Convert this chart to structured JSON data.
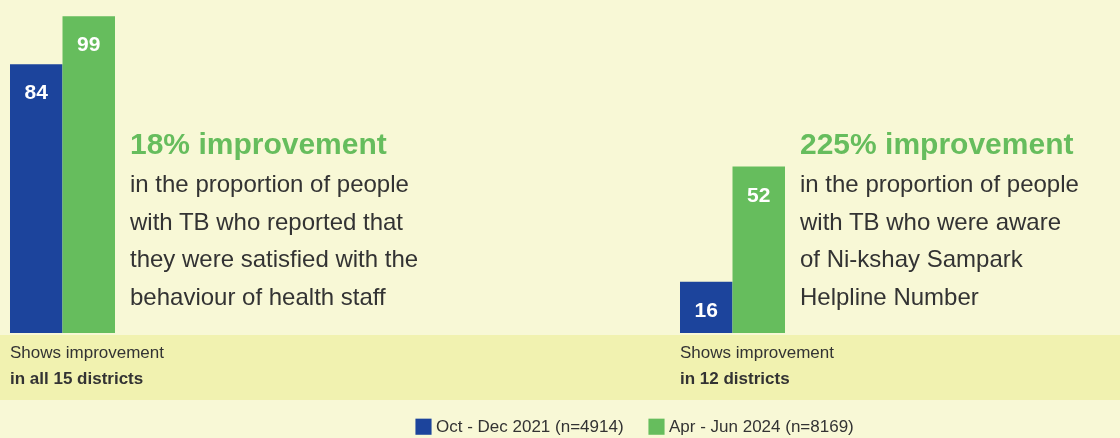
{
  "chart_data": [
    {
      "type": "bar",
      "categories": [
        null
      ],
      "tick_labels": false,
      "data_labels": true,
      "legend": "bottom",
      "series": [
        {
          "name": "Oct - Dec 2021 (n=4914)",
          "color": "#1c449c",
          "values": [
            84
          ]
        },
        {
          "name": "Apr - Jun 2024 (n=8169)",
          "color": "#66bd5d",
          "values": [
            99
          ]
        }
      ],
      "annotations": [
        "18% improvement",
        "in the proportion of people",
        "with TB who reported that",
        "they were satisfied with the",
        "behaviour of health staff",
        "Shows improvement",
        "in all 15 districts"
      ]
    },
    {
      "type": "bar",
      "categories": [
        null
      ],
      "tick_labels": false,
      "data_labels": true,
      "legend": "bottom",
      "series": [
        {
          "name": "Oct - Dec 2021 (n=4914)",
          "color": "#1c449c",
          "values": [
            16
          ]
        },
        {
          "name": "Apr - Jun 2024 (n=8169)",
          "color": "#66bd5d",
          "values": [
            52
          ]
        }
      ],
      "annotations": [
        "225% improvement",
        "in the proportion of people",
        "with TB who were aware",
        "of Ni-kshay Sampark",
        "Helpline Number",
        "Shows improvement",
        "in 12 districts"
      ]
    }
  ]
}
